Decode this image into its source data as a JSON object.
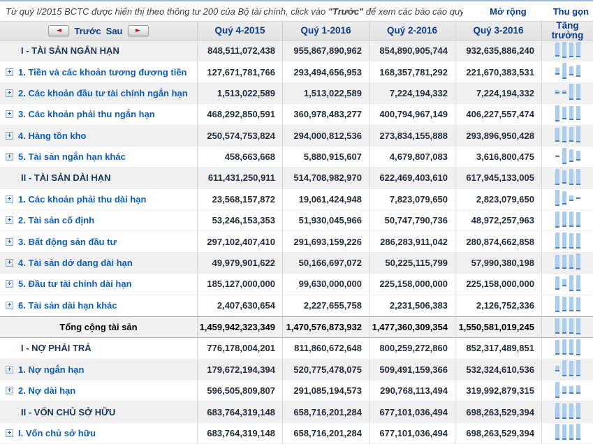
{
  "info_bar": {
    "text_before": "Từ quý I/2015 BCTC được hiển thị theo thông tư 200 của Bộ tài chính, click vào ",
    "text_bold": "\"Trước\"",
    "text_after": " để xem các báo cáo quý trước.",
    "expand_link": "Mở rộng",
    "collapse_link": "Thu gọn"
  },
  "table": {
    "nav": {
      "prev_label": "Trước",
      "next_label": "Sau",
      "prev_arrow": "◄",
      "next_arrow": "►"
    },
    "columns": [
      "Quý 4-2015",
      "Quý 1-2016",
      "Quý 2-2016",
      "Quý 3-2016"
    ],
    "growth_column": "Tăng trưởng",
    "rows": [
      {
        "label": "I - TÀI SẢN NGẮN HẠN",
        "type": "section",
        "expandable": false,
        "shaded": true,
        "values": [
          "848,511,072,438",
          "955,867,890,962",
          "854,890,905,744",
          "932,635,886,240"
        ]
      },
      {
        "label": "1. Tiền và các khoản tương đương tiền",
        "type": "item",
        "expandable": true,
        "shaded": false,
        "values": [
          "127,671,781,766",
          "293,494,656,953",
          "168,357,781,292",
          "221,670,383,531"
        ]
      },
      {
        "label": "2. Các khoản đầu tư tài chính ngắn hạn",
        "type": "item",
        "expandable": true,
        "shaded": true,
        "values": [
          "1,513,022,589",
          "1,513,022,589",
          "7,224,194,332",
          "7,224,194,332"
        ]
      },
      {
        "label": "3. Các khoản phải thu ngắn hạn",
        "type": "item",
        "expandable": true,
        "shaded": false,
        "values": [
          "468,292,850,591",
          "360,978,483,277",
          "400,794,967,149",
          "406,227,557,474"
        ]
      },
      {
        "label": "4. Hàng tồn kho",
        "type": "item",
        "expandable": true,
        "shaded": true,
        "values": [
          "250,574,753,824",
          "294,000,812,536",
          "273,834,155,888",
          "293,896,950,428"
        ]
      },
      {
        "label": "5. Tài sản ngắn hạn khác",
        "type": "item",
        "expandable": true,
        "shaded": false,
        "values": [
          "458,663,668",
          "5,880,915,607",
          "4,679,807,083",
          "3,616,800,475"
        ]
      },
      {
        "label": "II - TÀI SẢN DÀI HẠN",
        "type": "section",
        "expandable": false,
        "shaded": true,
        "values": [
          "611,431,250,911",
          "514,708,982,970",
          "622,469,403,610",
          "617,945,133,005"
        ]
      },
      {
        "label": "1. Các khoản phải thu dài hạn",
        "type": "item",
        "expandable": true,
        "shaded": false,
        "values": [
          "23,568,157,872",
          "19,061,424,948",
          "7,823,079,650",
          "2,823,079,650"
        ]
      },
      {
        "label": "2. Tài sản cố định",
        "type": "item",
        "expandable": true,
        "shaded": false,
        "values": [
          "53,246,153,353",
          "51,930,045,966",
          "50,747,790,736",
          "48,972,257,963"
        ]
      },
      {
        "label": "3. Bất động sản đầu tư",
        "type": "item",
        "expandable": true,
        "shaded": false,
        "values": [
          "297,102,407,410",
          "291,693,159,226",
          "286,283,911,042",
          "280,874,662,858"
        ]
      },
      {
        "label": "4. Tài sản dở dang dài hạn",
        "type": "item",
        "expandable": true,
        "shaded": true,
        "values": [
          "49,979,901,622",
          "50,166,697,072",
          "50,225,115,799",
          "57,990,380,198"
        ]
      },
      {
        "label": "5. Đầu tư tài chính dài hạn",
        "type": "item",
        "expandable": true,
        "shaded": false,
        "values": [
          "185,127,000,000",
          "99,630,000,000",
          "225,158,000,000",
          "225,158,000,000"
        ]
      },
      {
        "label": "6. Tài sản dài hạn khác",
        "type": "item",
        "expandable": true,
        "shaded": false,
        "values": [
          "2,407,630,654",
          "2,227,655,758",
          "2,231,506,383",
          "2,126,752,336"
        ]
      },
      {
        "label": "Tổng cộng tài sản",
        "type": "total",
        "expandable": false,
        "shaded": true,
        "values": [
          "1,459,942,323,349",
          "1,470,576,873,932",
          "1,477,360,309,354",
          "1,550,581,019,245"
        ]
      },
      {
        "label": "I - NỢ PHẢI TRẢ",
        "type": "section",
        "expandable": false,
        "shaded": false,
        "values": [
          "776,178,004,201",
          "811,860,672,648",
          "800,259,272,860",
          "852,317,489,851"
        ]
      },
      {
        "label": "1. Nợ ngắn hạn",
        "type": "item",
        "expandable": true,
        "shaded": true,
        "values": [
          "179,672,194,394",
          "520,775,478,075",
          "509,491,159,366",
          "532,324,610,536"
        ]
      },
      {
        "label": "2. Nợ dài hạn",
        "type": "item",
        "expandable": true,
        "shaded": false,
        "values": [
          "596,505,809,807",
          "291,085,194,573",
          "290,768,113,494",
          "319,992,879,315"
        ]
      },
      {
        "label": "II - VỐN CHỦ SỞ HỮU",
        "type": "section",
        "expandable": false,
        "shaded": true,
        "values": [
          "683,764,319,148",
          "658,716,201,284",
          "677,101,036,494",
          "698,263,529,394"
        ]
      },
      {
        "label": "I. Vốn chủ sở hữu",
        "type": "item",
        "expandable": true,
        "shaded": false,
        "values": [
          "683,764,319,148",
          "658,716,201,284",
          "677,101,036,494",
          "698,263,529,394"
        ]
      }
    ]
  },
  "colors": {
    "link_blue": "#0a3d8f",
    "item_label_blue": "#0d5eb8",
    "section_label_navy": "#17375d",
    "value_text": "#222e3e",
    "arrow_red": "#c00000",
    "sparkline_fill": "#a9cdf0",
    "sparkline_base": "#4a80c0",
    "shaded_row": "#f0f0f0",
    "header_bg": "#e8e8e8"
  }
}
